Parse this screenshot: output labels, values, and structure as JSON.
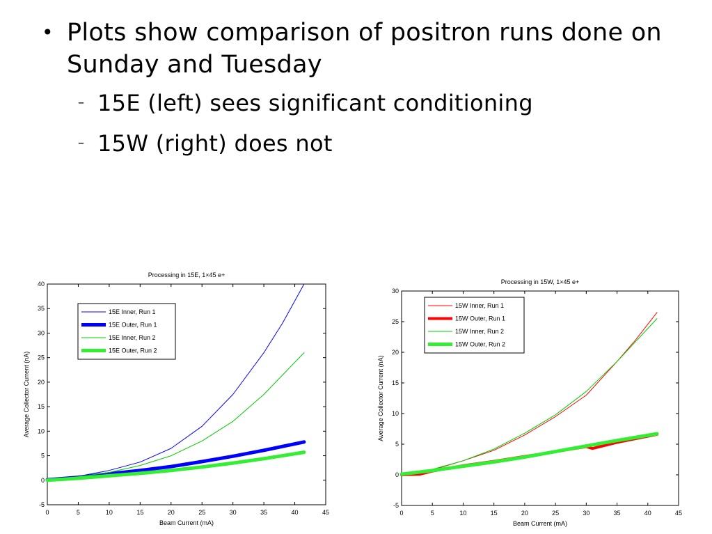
{
  "slide": {
    "bullet": "Plots show comparison of positron runs done on Sunday and Tuesday",
    "subbullets": [
      "15E (left) sees significant conditioning",
      "15W (right) does not"
    ],
    "bullet_marker": "•",
    "sub_marker": "–"
  },
  "chart_data": [
    {
      "type": "line",
      "title": "Processing in 15E, 1×45 e+",
      "xlabel": "Beam Current (mA)",
      "ylabel": "Average Collector Current (nA)",
      "xlim": [
        0,
        45
      ],
      "ylim": [
        -5,
        40
      ],
      "xticks": [
        "0",
        "5",
        "10",
        "15",
        "20",
        "25",
        "30",
        "35",
        "40",
        "45"
      ],
      "yticks": [
        "-5",
        "0",
        "5",
        "10",
        "15",
        "20",
        "25",
        "30",
        "35",
        "40"
      ],
      "grid": false,
      "legend_position": "top-left",
      "series": [
        {
          "name": "15E Inner, Run 1",
          "color": "#0000ff",
          "width": 1,
          "x": [
            0,
            5,
            10,
            15,
            20,
            25,
            30,
            35,
            38,
            41.5
          ],
          "y": [
            0.3,
            0.8,
            2.0,
            3.7,
            6.5,
            11.0,
            17.5,
            26.0,
            32.0,
            40.0
          ]
        },
        {
          "name": "15E Outer, Run 1",
          "color": "#0000ff",
          "width": 5,
          "x": [
            0,
            5,
            10,
            15,
            20,
            25,
            30,
            35,
            41.5
          ],
          "y": [
            0.1,
            0.6,
            1.3,
            2.0,
            2.8,
            3.8,
            4.9,
            6.1,
            7.8
          ]
        },
        {
          "name": "15E Inner, Run 2",
          "color": "#00cc00",
          "width": 1,
          "x": [
            0,
            5,
            10,
            15,
            20,
            25,
            30,
            35,
            41.5
          ],
          "y": [
            0.2,
            0.7,
            1.6,
            3.0,
            5.0,
            8.0,
            12.0,
            17.5,
            26.0
          ]
        },
        {
          "name": "15E Outer, Run 2",
          "color": "#33ee33",
          "width": 5,
          "x": [
            0,
            5,
            10,
            15,
            20,
            25,
            30,
            35,
            41.5
          ],
          "y": [
            0.0,
            0.4,
            0.9,
            1.4,
            2.0,
            2.7,
            3.5,
            4.4,
            5.7
          ]
        }
      ]
    },
    {
      "type": "line",
      "title": "Processing in 15W, 1×45 e+",
      "xlabel": "Beam Current (mA)",
      "ylabel": "Average Collector Current (nA)",
      "xlim": [
        0,
        45
      ],
      "ylim": [
        -5,
        30
      ],
      "xticks": [
        "0",
        "5",
        "10",
        "15",
        "20",
        "25",
        "30",
        "35",
        "40",
        "45"
      ],
      "yticks": [
        "-5",
        "0",
        "5",
        "10",
        "15",
        "20",
        "25",
        "30"
      ],
      "grid": false,
      "legend_position": "top-left",
      "series": [
        {
          "name": "15W Inner, Run 1",
          "color": "#ff0000",
          "width": 1,
          "x": [
            0,
            5,
            10,
            15,
            20,
            25,
            30,
            35,
            38,
            41.5
          ],
          "y": [
            0.2,
            0.8,
            2.3,
            4.0,
            6.5,
            9.5,
            13.0,
            18.5,
            22.0,
            26.5
          ]
        },
        {
          "name": "15W Outer, Run 1",
          "color": "#ff0000",
          "width": 4,
          "x": [
            0,
            3,
            5,
            10,
            15,
            20,
            22,
            25,
            30,
            31,
            35,
            41.5
          ],
          "y": [
            0.0,
            0.1,
            0.6,
            1.5,
            2.2,
            3.0,
            3.3,
            3.8,
            4.6,
            4.3,
            5.3,
            6.6
          ]
        },
        {
          "name": "15W Inner, Run 2",
          "color": "#00cc00",
          "width": 1,
          "x": [
            0,
            5,
            10,
            15,
            20,
            25,
            30,
            35,
            41.5
          ],
          "y": [
            0.2,
            0.9,
            2.3,
            4.2,
            6.8,
            9.8,
            13.6,
            18.5,
            25.5
          ]
        },
        {
          "name": "15W Outer, Run 2",
          "color": "#33ee33",
          "width": 5,
          "x": [
            0,
            5,
            10,
            15,
            20,
            25,
            30,
            35,
            41.5
          ],
          "y": [
            0.1,
            0.7,
            1.4,
            2.1,
            2.9,
            3.8,
            4.7,
            5.6,
            6.7
          ]
        }
      ]
    }
  ]
}
